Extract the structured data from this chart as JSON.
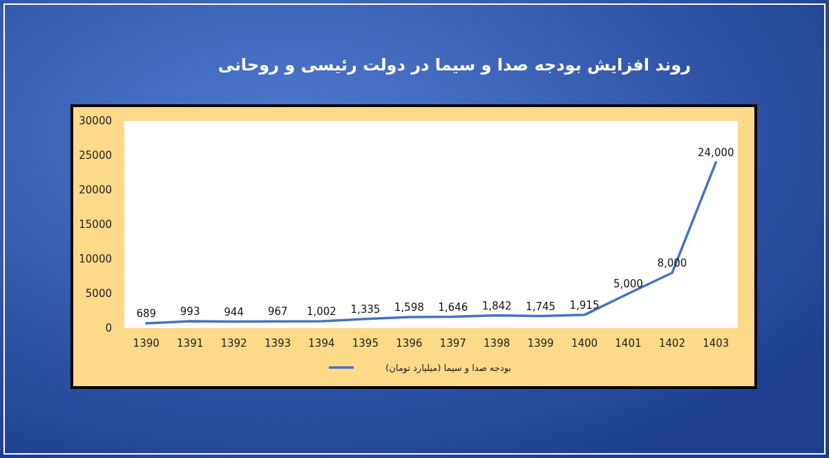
{
  "chart_data": {
    "type": "line",
    "title": "روند افزایش بودجه صدا و سیما در دولت رئیسی و روحانی",
    "categories": [
      "1390",
      "1391",
      "1392",
      "1393",
      "1394",
      "1395",
      "1396",
      "1397",
      "1398",
      "1399",
      "1400",
      "1401",
      "1402",
      "1403"
    ],
    "series": [
      {
        "name": "بودجه صدا و سیما (میلیارد تومان)",
        "color": "#4472c4",
        "values": [
          689,
          993,
          944,
          967,
          1002,
          1335,
          1598,
          1646,
          1842,
          1745,
          1915,
          5000,
          8000,
          24000
        ],
        "value_labels": [
          "689",
          "993",
          "944",
          "967",
          "1,002",
          "1,335",
          "1,598",
          "1,646",
          "1,842",
          "1,745",
          "1,915",
          "5,000",
          "8,000",
          "24,000"
        ]
      }
    ],
    "ylim": [
      0,
      30000
    ],
    "yticks": [
      0,
      5000,
      10000,
      15000,
      20000,
      25000,
      30000
    ],
    "grid": false,
    "legend": "bottom",
    "marker": "none",
    "line_style": "solid"
  }
}
